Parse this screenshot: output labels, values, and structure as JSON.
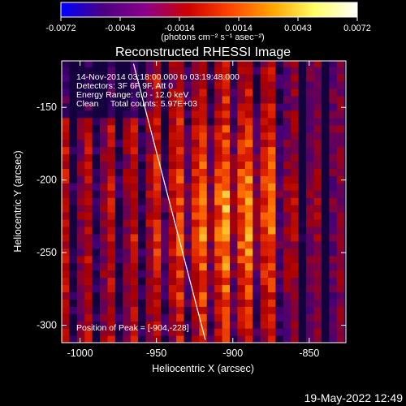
{
  "chart_data": [
    {
      "type": "colorbar",
      "colorscale": "rhessi-thermal",
      "colorscale_stops": [
        "#0000ff",
        "#4b0082",
        "#8b008b",
        "#cc0000",
        "#ff4500",
        "#ffa500",
        "#ffff66",
        "#ffffff"
      ],
      "range": [
        -0.0072,
        0.0072
      ],
      "tick_labels": [
        "-0.0072",
        "-0.0043",
        "-0.0014",
        "0.0014",
        "0.0043",
        "0.0072"
      ],
      "label": "(photons cm⁻² s⁻¹ asec⁻²)"
    },
    {
      "type": "heatmap",
      "title": "Reconstructed RHESSI Image",
      "xlabel": "Heliocentric X (arcsec)",
      "ylabel": "Heliocentric Y (arcsec)",
      "xlim": [
        -1012,
        -826
      ],
      "ylim": [
        -312,
        -118
      ],
      "xticks": [
        -1000,
        -950,
        -900,
        -850
      ],
      "yticks": [
        -300,
        -250,
        -200,
        -150
      ],
      "annotations": [
        "14-Nov-2014 03:18:00.000 to 03:19:48.000",
        "Detectors: 3F 6F 9F, Att 0",
        "Energy Range: 6.0 - 12.0 keV",
        "Clean     Total counts: 5.97E+03"
      ],
      "peak_label": "Position of Peak = [-904,-228]",
      "peak": [
        -904,
        -228
      ],
      "limb_line": [
        [
          -965,
          -120
        ],
        [
          -918,
          -310
        ]
      ],
      "limb_color": "#ffffff"
    }
  ],
  "footer": {
    "timestamp": "19-May-2022 12:49"
  }
}
